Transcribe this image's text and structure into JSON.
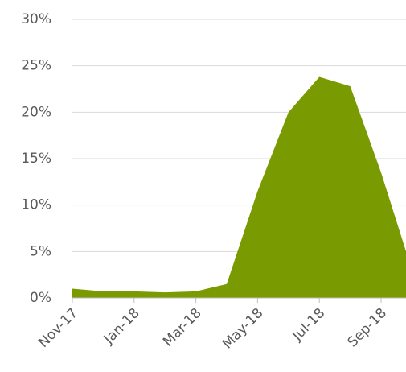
{
  "chart_data": {
    "type": "area",
    "categories": [
      "Nov-17",
      null,
      "Jan-18",
      null,
      "Mar-18",
      null,
      "May-18",
      null,
      "Jul-18",
      null,
      "Sep-18",
      null
    ],
    "values": [
      1.0,
      0.7,
      0.7,
      0.6,
      0.7,
      1.5,
      11.5,
      20.0,
      23.8,
      22.8,
      13.5,
      3.0
    ],
    "color": "#7a9a01",
    "ylim": [
      0,
      30
    ],
    "yticks": [
      {
        "value": 0,
        "label": "0%"
      },
      {
        "value": 5,
        "label": "5%"
      },
      {
        "value": 10,
        "label": "10%"
      },
      {
        "value": 15,
        "label": "15%"
      },
      {
        "value": 20,
        "label": "20%"
      },
      {
        "value": 25,
        "label": "25%"
      },
      {
        "value": 30,
        "label": "30%"
      }
    ],
    "grid": true
  }
}
